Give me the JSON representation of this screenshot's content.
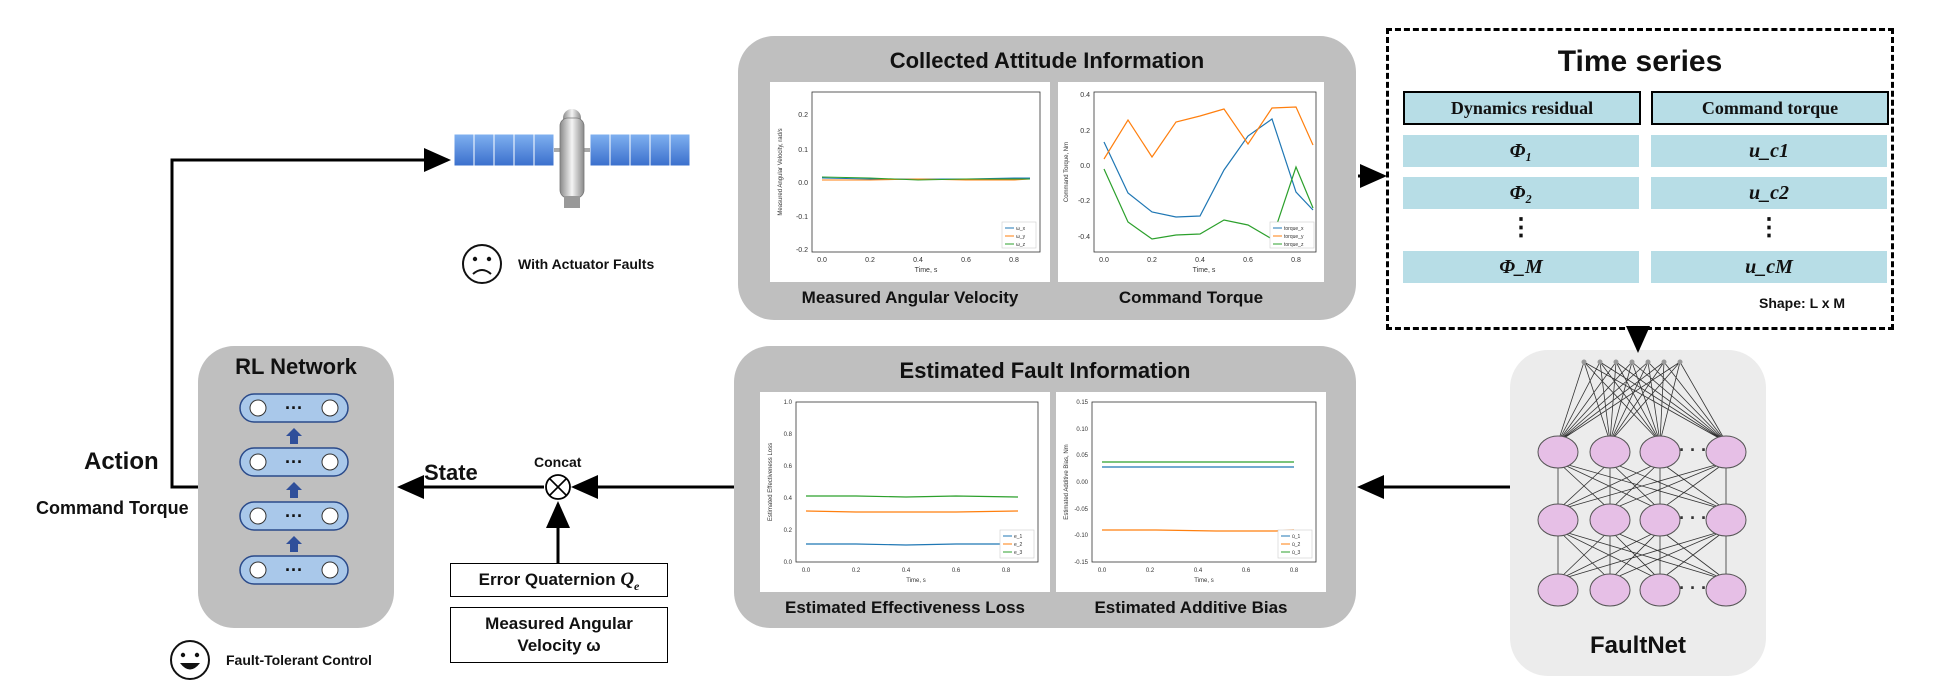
{
  "collected": {
    "title": "Collected Attitude Information",
    "left_label": "Measured Angular Velocity",
    "right_label": "Command Torque",
    "left_plot": {
      "ylabel": "Measured Angular Velocity, rad/s",
      "xlabel": "Time, s",
      "yticks": [
        "0.2",
        "0.1",
        "0.0",
        "-0.1",
        "-0.2"
      ],
      "xticks": [
        "0.0",
        "0.2",
        "0.4",
        "0.6",
        "0.8"
      ],
      "legend": [
        "ω_x",
        "ω_y",
        "ω_z"
      ]
    },
    "right_plot": {
      "ylabel": "Command Torque, Nm",
      "xlabel": "Time, s",
      "yticks": [
        "0.4",
        "0.2",
        "0.0",
        "-0.2",
        "-0.4"
      ],
      "xticks": [
        "0.0",
        "0.2",
        "0.4",
        "0.6",
        "0.8"
      ],
      "legend": [
        "torque_x",
        "torque_y",
        "torque_z"
      ]
    }
  },
  "estimated": {
    "title": "Estimated Fault Information",
    "left_label": "Estimated Effectiveness Loss",
    "right_label": "Estimated Additive Bias",
    "left_plot": {
      "ylabel": "Estimated Effectiveness Loss",
      "xlabel": "Time, s",
      "yticks": [
        "1.0",
        "0.8",
        "0.6",
        "0.4",
        "0.2",
        "0.0"
      ],
      "xticks": [
        "0.0",
        "0.2",
        "0.4",
        "0.6",
        "0.8"
      ],
      "legend": [
        "e_1",
        "e_2",
        "e_3"
      ]
    },
    "right_plot": {
      "ylabel": "Estimated Additive Bias, Nm",
      "xlabel": "Time, s",
      "yticks": [
        "0.15",
        "0.10",
        "0.05",
        "0.00",
        "-0.05",
        "-0.10",
        "-0.15"
      ],
      "xticks": [
        "0.0",
        "0.2",
        "0.4",
        "0.6",
        "0.8"
      ],
      "legend": [
        "ū_1",
        "ū_2",
        "ū_3"
      ]
    }
  },
  "timeseries": {
    "title": "Time series",
    "col1_header": "Dynamics residual",
    "col2_header": "Command torque",
    "col1": [
      "Φ₁",
      "Φ₂",
      "⋮",
      "Φ_M"
    ],
    "col2": [
      "u_c1",
      "u_c2",
      "⋮",
      "u_cM"
    ],
    "shape": "Shape: L x M"
  },
  "faultnet": {
    "label": "FaultNet",
    "dots": "· · ·"
  },
  "rl": {
    "title": "RL Network",
    "dots": "···"
  },
  "labels": {
    "action": "Action",
    "command_torque": "Command Torque",
    "state": "State",
    "concat": "Concat",
    "error_quaternion": "Error Quaternion",
    "error_quaternion_symbol": "Q",
    "error_quaternion_sub": "e",
    "measured_angular_velocity": "Measured Angular",
    "measured_angular_velocity_2": "Velocity ω",
    "with_faults": "With Actuator Faults",
    "ftc": "Fault-Tolerant Control"
  },
  "colors": {
    "panel_gray": "#bfbfbf",
    "cell_teal": "#b7dde6",
    "rl_layer": "#a9c8ea",
    "faultnet_node": "#e6bfe6",
    "series_blue": "#1f77b4",
    "series_orange": "#ff7f0e",
    "series_green": "#2ca02c"
  }
}
